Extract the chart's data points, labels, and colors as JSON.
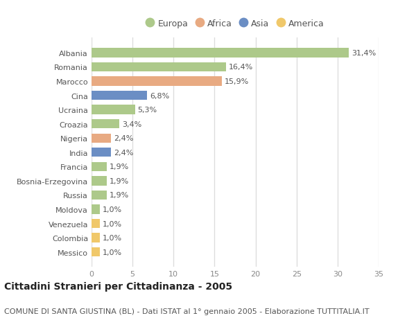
{
  "title": "Cittadini Stranieri per Cittadinanza - 2005",
  "subtitle": "COMUNE DI SANTA GIUSTINA (BL) - Dati ISTAT al 1° gennaio 2005 - Elaborazione TUTTITALIA.IT",
  "categories": [
    "Albania",
    "Romania",
    "Marocco",
    "Cina",
    "Ucraina",
    "Croazia",
    "Nigeria",
    "India",
    "Francia",
    "Bosnia-Erzegovina",
    "Russia",
    "Moldova",
    "Venezuela",
    "Colombia",
    "Messico"
  ],
  "values": [
    31.4,
    16.4,
    15.9,
    6.8,
    5.3,
    3.4,
    2.4,
    2.4,
    1.9,
    1.9,
    1.9,
    1.0,
    1.0,
    1.0,
    1.0
  ],
  "continent": [
    "Europa",
    "Europa",
    "Africa",
    "Asia",
    "Europa",
    "Europa",
    "Africa",
    "Asia",
    "Europa",
    "Europa",
    "Europa",
    "Europa",
    "America",
    "America",
    "America"
  ],
  "labels": [
    "31,4%",
    "16,4%",
    "15,9%",
    "6,8%",
    "5,3%",
    "3,4%",
    "2,4%",
    "2,4%",
    "1,9%",
    "1,9%",
    "1,9%",
    "1,0%",
    "1,0%",
    "1,0%",
    "1,0%"
  ],
  "colors": {
    "Europa": "#adc98a",
    "Africa": "#e8aa82",
    "Asia": "#6b8ec4",
    "America": "#f0c86a"
  },
  "legend_order": [
    "Europa",
    "Africa",
    "Asia",
    "America"
  ],
  "xlim": [
    0,
    35
  ],
  "xticks": [
    0,
    5,
    10,
    15,
    20,
    25,
    30,
    35
  ],
  "background_color": "#ffffff",
  "plot_background": "#ffffff",
  "grid_color": "#dddddd",
  "bar_height": 0.65,
  "title_fontsize": 10,
  "subtitle_fontsize": 8,
  "label_fontsize": 8,
  "ytick_fontsize": 8,
  "xtick_fontsize": 8,
  "legend_fontsize": 9
}
